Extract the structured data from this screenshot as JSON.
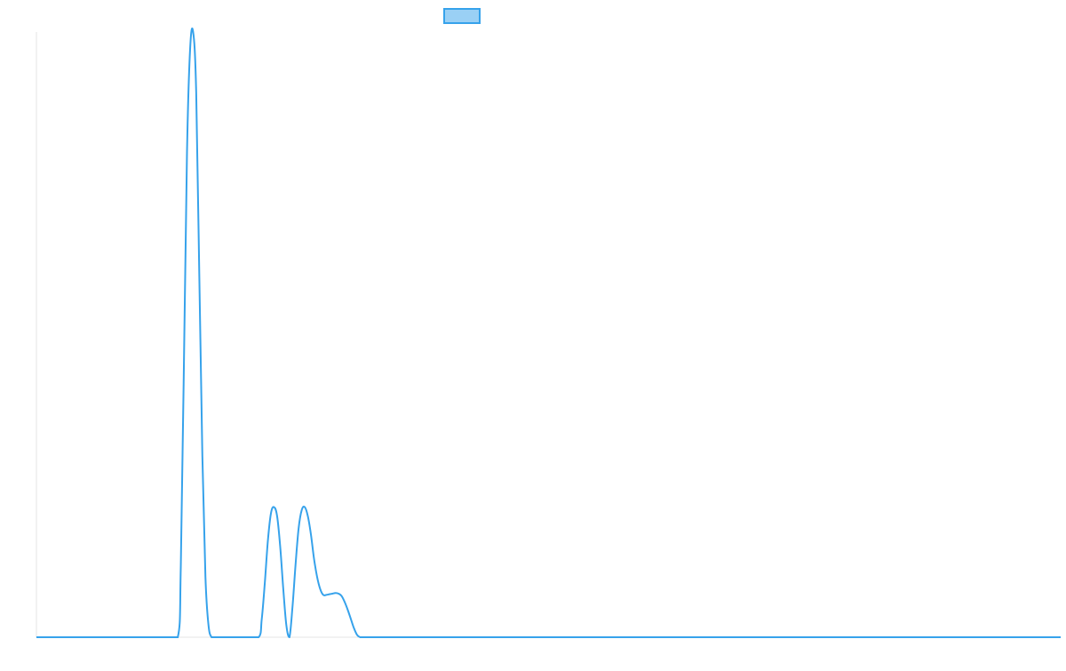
{
  "chart_data": {
    "type": "line",
    "title": "",
    "xlabel": "",
    "ylabel": "",
    "grid": false,
    "legend_position": "top-center",
    "x_range": [
      0,
      1000
    ],
    "ylim": [
      0,
      1
    ],
    "x": [
      0,
      138,
      141,
      144,
      147,
      150,
      153,
      156,
      159,
      162,
      165,
      168,
      171,
      174,
      177,
      180,
      182,
      217,
      220,
      223,
      226,
      229,
      232,
      235,
      238,
      241,
      244,
      247,
      250,
      253,
      256,
      259,
      262,
      265,
      268,
      271,
      274,
      277,
      280,
      283,
      286,
      289,
      292,
      295,
      298,
      301,
      304,
      307,
      310,
      313,
      316,
      319,
      322,
      1000
    ],
    "series": [
      {
        "name": "",
        "values": [
          0,
          0,
          0.12,
          0.45,
          0.8,
          0.97,
          1.0,
          0.9,
          0.6,
          0.3,
          0.1,
          0.02,
          0.0,
          0.0,
          0.0,
          0.0,
          0.0,
          0.0,
          0.03,
          0.09,
          0.16,
          0.205,
          0.215,
          0.2,
          0.15,
          0.08,
          0.02,
          0.0,
          0.05,
          0.12,
          0.18,
          0.21,
          0.215,
          0.2,
          0.17,
          0.13,
          0.1,
          0.08,
          0.07,
          0.07,
          0.071,
          0.072,
          0.073,
          0.072,
          0.068,
          0.058,
          0.045,
          0.03,
          0.015,
          0.004,
          0.0,
          0.0,
          0.0,
          0
        ]
      }
    ],
    "colors": {
      "line": "#36a2eb",
      "legend_fill": "#9ad0f5",
      "axis": "#e5e5e5"
    }
  }
}
